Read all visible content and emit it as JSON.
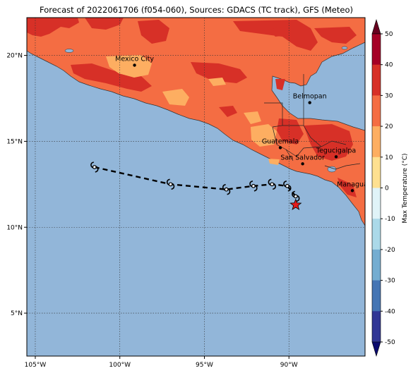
{
  "title": "Forecast of 2022061706 (f054-060), Sources: GDACS (TC track), GFS (Meteo)",
  "map": {
    "lon_range": [
      -105.5,
      -85.5
    ],
    "lat_range": [
      2.5,
      22.2
    ],
    "lon_ticks": [
      {
        "value": -105,
        "label": "105°W"
      },
      {
        "value": -100,
        "label": "100°W"
      },
      {
        "value": -95,
        "label": "95°W"
      },
      {
        "value": -90,
        "label": "90°W"
      }
    ],
    "lat_ticks": [
      {
        "value": 20,
        "label": "20°N"
      },
      {
        "value": 15,
        "label": "15°N"
      },
      {
        "value": 10,
        "label": "10°N"
      },
      {
        "value": 5,
        "label": "5°N"
      }
    ],
    "ocean_color": "#92b6d9",
    "land_colors": {
      "20-30": "#f46d43",
      "30-40": "#d73027",
      "10-20": "#fdae61"
    },
    "grid": true
  },
  "cities": [
    {
      "name": "Mexico City",
      "lon": -99.13,
      "lat": 19.43
    },
    {
      "name": "Belmopan",
      "lon": -88.77,
      "lat": 17.25
    },
    {
      "name": "Guatemala",
      "lon": -90.51,
      "lat": 14.63
    },
    {
      "name": "Tegucigalpa",
      "lon": -87.21,
      "lat": 14.1
    },
    {
      "name": "San Salvador",
      "lon": -89.19,
      "lat": 13.69
    },
    {
      "name": "Managua",
      "lon": -86.25,
      "lat": 12.13
    }
  ],
  "track": {
    "icon": "tropical-cyclone-icon",
    "points": [
      {
        "lon": -101.5,
        "lat": 13.5
      },
      {
        "lon": -97.0,
        "lat": 12.5
      },
      {
        "lon": -93.7,
        "lat": 12.2
      },
      {
        "lon": -92.1,
        "lat": 12.4
      },
      {
        "lon": -91.0,
        "lat": 12.5
      },
      {
        "lon": -90.1,
        "lat": 12.4
      },
      {
        "lon": -89.6,
        "lat": 11.8
      }
    ],
    "current_position": {
      "lon": -89.6,
      "lat": 11.3,
      "marker": "red-star"
    }
  },
  "colorbar": {
    "label": "Max Temperature (°C)",
    "ticks": [
      50,
      40,
      30,
      20,
      10,
      0,
      -10,
      -20,
      -30,
      -40,
      -50
    ],
    "colors": [
      "#a50026",
      "#d73027",
      "#f46d43",
      "#fdae61",
      "#fee090",
      "#e0f3f8",
      "#abd9e9",
      "#74add1",
      "#4575b4",
      "#313695"
    ],
    "extend": "both"
  }
}
